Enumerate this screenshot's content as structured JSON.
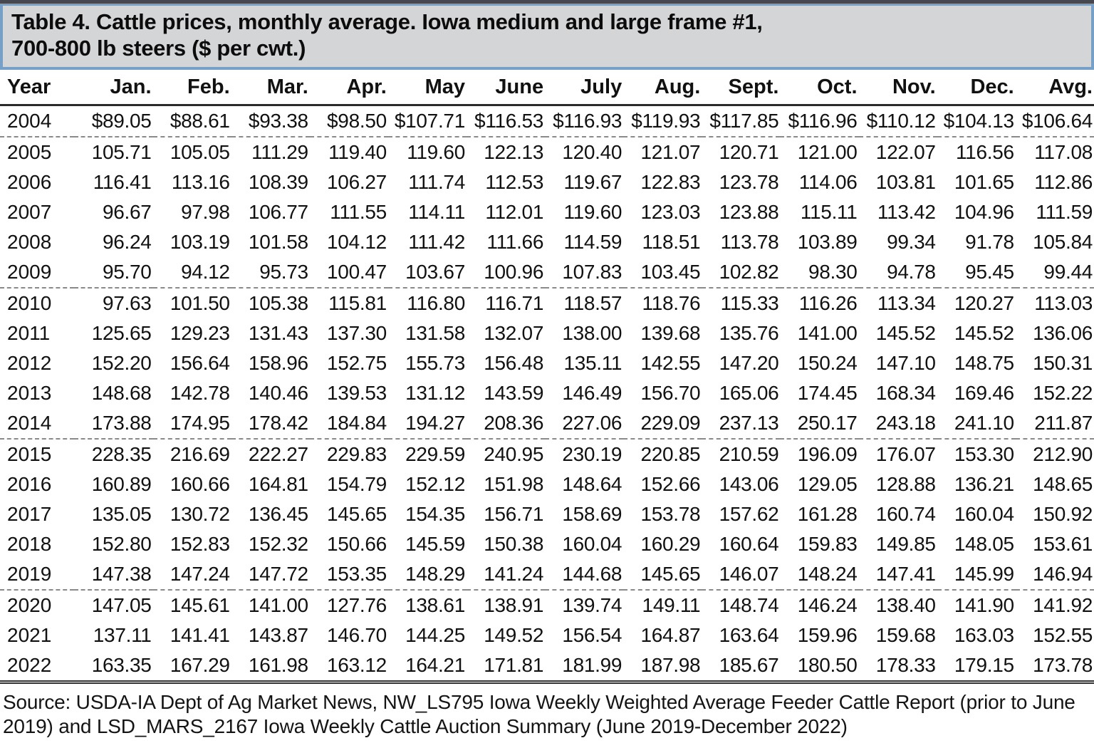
{
  "title": {
    "line1": "Table 4. Cattle prices, monthly average. Iowa medium and large frame #1,",
    "line2": "700-800 lb steers ($ per cwt.)"
  },
  "table": {
    "columns": [
      "Year",
      "Jan.",
      "Feb.",
      "Mar.",
      "Apr.",
      "May",
      "June",
      "July",
      "Aug.",
      "Sept.",
      "Oct.",
      "Nov.",
      "Dec.",
      "Avg."
    ],
    "rows": [
      {
        "year": "2004",
        "values": [
          "$89.05",
          "$88.61",
          "$93.38",
          "$98.50",
          "$107.71",
          "$116.53",
          "$116.93",
          "$119.93",
          "$117.85",
          "$116.96",
          "$110.12",
          "$104.13",
          "$106.64"
        ],
        "group_break_after": true
      },
      {
        "year": "2005",
        "values": [
          "105.71",
          "105.05",
          "111.29",
          "119.40",
          "119.60",
          "122.13",
          "120.40",
          "121.07",
          "120.71",
          "121.00",
          "122.07",
          "116.56",
          "117.08"
        ],
        "group_break_after": false
      },
      {
        "year": "2006",
        "values": [
          "116.41",
          "113.16",
          "108.39",
          "106.27",
          "111.74",
          "112.53",
          "119.67",
          "122.83",
          "123.78",
          "114.06",
          "103.81",
          "101.65",
          "112.86"
        ],
        "group_break_after": false
      },
      {
        "year": "2007",
        "values": [
          "96.67",
          "97.98",
          "106.77",
          "111.55",
          "114.11",
          "112.01",
          "119.60",
          "123.03",
          "123.88",
          "115.11",
          "113.42",
          "104.96",
          "111.59"
        ],
        "group_break_after": false
      },
      {
        "year": "2008",
        "values": [
          "96.24",
          "103.19",
          "101.58",
          "104.12",
          "111.42",
          "111.66",
          "114.59",
          "118.51",
          "113.78",
          "103.89",
          "99.34",
          "91.78",
          "105.84"
        ],
        "group_break_after": false
      },
      {
        "year": "2009",
        "values": [
          "95.70",
          "94.12",
          "95.73",
          "100.47",
          "103.67",
          "100.96",
          "107.83",
          "103.45",
          "102.82",
          "98.30",
          "94.78",
          "95.45",
          "99.44"
        ],
        "group_break_after": true
      },
      {
        "year": "2010",
        "values": [
          "97.63",
          "101.50",
          "105.38",
          "115.81",
          "116.80",
          "116.71",
          "118.57",
          "118.76",
          "115.33",
          "116.26",
          "113.34",
          "120.27",
          "113.03"
        ],
        "group_break_after": false
      },
      {
        "year": "2011",
        "values": [
          "125.65",
          "129.23",
          "131.43",
          "137.30",
          "131.58",
          "132.07",
          "138.00",
          "139.68",
          "135.76",
          "141.00",
          "145.52",
          "145.52",
          "136.06"
        ],
        "group_break_after": false
      },
      {
        "year": "2012",
        "values": [
          "152.20",
          "156.64",
          "158.96",
          "152.75",
          "155.73",
          "156.48",
          "135.11",
          "142.55",
          "147.20",
          "150.24",
          "147.10",
          "148.75",
          "150.31"
        ],
        "group_break_after": false
      },
      {
        "year": "2013",
        "values": [
          "148.68",
          "142.78",
          "140.46",
          "139.53",
          "131.12",
          "143.59",
          "146.49",
          "156.70",
          "165.06",
          "174.45",
          "168.34",
          "169.46",
          "152.22"
        ],
        "group_break_after": false
      },
      {
        "year": "2014",
        "values": [
          "173.88",
          "174.95",
          "178.42",
          "184.84",
          "194.27",
          "208.36",
          "227.06",
          "229.09",
          "237.13",
          "250.17",
          "243.18",
          "241.10",
          "211.87"
        ],
        "group_break_after": true
      },
      {
        "year": "2015",
        "values": [
          "228.35",
          "216.69",
          "222.27",
          "229.83",
          "229.59",
          "240.95",
          "230.19",
          "220.85",
          "210.59",
          "196.09",
          "176.07",
          "153.30",
          "212.90"
        ],
        "group_break_after": false
      },
      {
        "year": "2016",
        "values": [
          "160.89",
          "160.66",
          "164.81",
          "154.79",
          "152.12",
          "151.98",
          "148.64",
          "152.66",
          "143.06",
          "129.05",
          "128.88",
          "136.21",
          "148.65"
        ],
        "group_break_after": false
      },
      {
        "year": "2017",
        "values": [
          "135.05",
          "130.72",
          "136.45",
          "145.65",
          "154.35",
          "156.71",
          "158.69",
          "153.78",
          "157.62",
          "161.28",
          "160.74",
          "160.04",
          "150.92"
        ],
        "group_break_after": false
      },
      {
        "year": "2018",
        "values": [
          "152.80",
          "152.83",
          "152.32",
          "150.66",
          "145.59",
          "150.38",
          "160.04",
          "160.29",
          "160.64",
          "159.83",
          "149.85",
          "148.05",
          "153.61"
        ],
        "group_break_after": false
      },
      {
        "year": "2019",
        "values": [
          "147.38",
          "147.24",
          "147.72",
          "153.35",
          "148.29",
          "141.24",
          "144.68",
          "145.65",
          "146.07",
          "148.24",
          "147.41",
          "145.99",
          "146.94"
        ],
        "group_break_after": true
      },
      {
        "year": "2020",
        "values": [
          "147.05",
          "145.61",
          "141.00",
          "127.76",
          "138.61",
          "138.91",
          "139.74",
          "149.11",
          "148.74",
          "146.24",
          "138.40",
          "141.90",
          "141.92"
        ],
        "group_break_after": false
      },
      {
        "year": "2021",
        "values": [
          "137.11",
          "141.41",
          "143.87",
          "146.70",
          "144.25",
          "149.52",
          "156.54",
          "164.87",
          "163.64",
          "159.96",
          "159.68",
          "163.03",
          "152.55"
        ],
        "group_break_after": false
      },
      {
        "year": "2022",
        "values": [
          "163.35",
          "167.29",
          "161.98",
          "163.12",
          "164.21",
          "171.81",
          "181.99",
          "187.98",
          "185.67",
          "180.50",
          "178.33",
          "179.15",
          "173.78"
        ],
        "group_break_after": false
      }
    ]
  },
  "source_text": "Source: USDA-IA Dept of Ag Market News, NW_LS795 Iowa Weekly Weighted Average Feeder Cattle Report (prior to June 2019) and LSD_MARS_2167 Iowa Weekly Cattle Auction Summary (June 2019-December 2022)",
  "colors": {
    "title_bar_background": "#d4d5d7",
    "title_bar_border_blue": "#76a0c8",
    "top_rule_dark": "#474750",
    "text": "#111111"
  }
}
